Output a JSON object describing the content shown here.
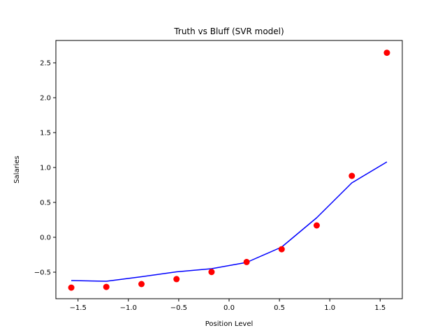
{
  "chart_data": {
    "type": "scatter",
    "title": "Truth vs Bluff (SVR model)",
    "xlabel": "Position Level",
    "ylabel": "Salaries",
    "xlim": [
      -1.72,
      1.72
    ],
    "ylim": [
      -0.88,
      2.82
    ],
    "xticks": [
      -1.5,
      -1.0,
      -0.5,
      0.0,
      0.5,
      1.0,
      1.5
    ],
    "xtick_labels": [
      "−1.5",
      "−1.0",
      "−0.5",
      "0.0",
      "0.5",
      "1.0",
      "1.5"
    ],
    "yticks": [
      -0.5,
      0.0,
      0.5,
      1.0,
      1.5,
      2.0,
      2.5
    ],
    "ytick_labels": [
      "−0.5",
      "0.0",
      "0.5",
      "1.0",
      "1.5",
      "2.0",
      "2.5"
    ],
    "grid": false,
    "series": [
      {
        "kind": "scatter",
        "color": "#ff0000",
        "x": [
          -1.567,
          -1.219,
          -0.87,
          -0.522,
          -0.174,
          0.174,
          0.522,
          0.87,
          1.219,
          1.567
        ],
        "y": [
          -0.721,
          -0.711,
          -0.67,
          -0.599,
          -0.497,
          -0.354,
          -0.171,
          0.17,
          0.88,
          2.644
        ]
      },
      {
        "kind": "line",
        "color": "#0000ff",
        "x": [
          -1.567,
          -1.219,
          -0.87,
          -0.522,
          -0.174,
          0.174,
          0.522,
          0.87,
          1.219,
          1.567
        ],
        "y": [
          -0.62,
          -0.63,
          -0.565,
          -0.495,
          -0.45,
          -0.36,
          -0.14,
          0.28,
          0.78,
          1.08
        ]
      }
    ]
  }
}
